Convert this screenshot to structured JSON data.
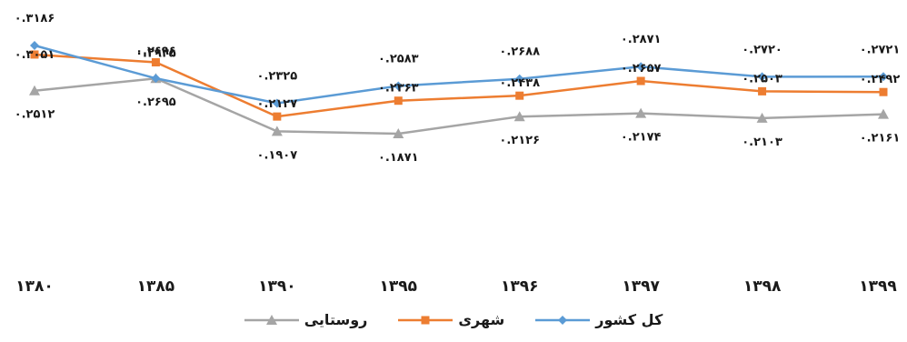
{
  "chart_data": {
    "type": "line",
    "x": [
      "۱۳۸۰",
      "۱۳۸۵",
      "۱۳۹۰",
      "۱۳۹۵",
      "۱۳۹۶",
      "۱۳۹۷",
      "۱۳۹۸",
      "۱۳۹۹"
    ],
    "series": [
      {
        "name": "کل کشور",
        "color": "#5b9bd5",
        "marker": "diamond",
        "values": [
          0.3186,
          0.2696,
          0.2325,
          0.2583,
          0.2688,
          0.2871,
          0.272,
          0.2721
        ],
        "labels": [
          "۰.۳۱۸۶",
          "۰.۲۶۹۶",
          "۰.۲۳۲۵",
          "۰.۲۵۸۳",
          "۰.۲۶۸۸",
          "۰.۲۸۷۱",
          "۰.۲۷۲۰",
          "۰.۲۷۲۱"
        ]
      },
      {
        "name": "شهری",
        "color": "#ed7d31",
        "marker": "square",
        "values": [
          0.3051,
          0.2935,
          0.2127,
          0.2363,
          0.2438,
          0.2657,
          0.2503,
          0.2492
        ],
        "labels": [
          "۰.۳۰۵۱",
          "۰.۲۹۳۵",
          "۰.۲۱۲۷",
          "۰.۲۳۶۳",
          "۰.۲۴۳۸",
          "۰.۲۶۵۷",
          "۰.۲۵۰۳",
          "۰.۲۴۹۲"
        ]
      },
      {
        "name": "روستایی",
        "color": "#a5a5a5",
        "marker": "triangle",
        "values": [
          0.2512,
          0.2695,
          0.1907,
          0.1871,
          0.2126,
          0.2174,
          0.2103,
          0.2161
        ],
        "labels": [
          "۰.۲۵۱۲",
          "۰.۲۶۹۵",
          "۰.۱۹۰۷",
          "۰.۱۸۷۱",
          "۰.۲۱۲۶",
          "۰.۲۱۷۴",
          "۰.۲۱۰۳",
          "۰.۲۱۶۱"
        ]
      }
    ],
    "legend_position": "bottom",
    "grid": false
  }
}
